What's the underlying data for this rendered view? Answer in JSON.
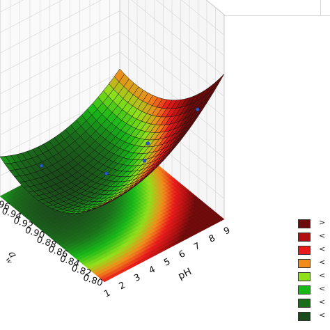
{
  "chart_data": {
    "type": "surface3d",
    "x_axis": {
      "label": "pH",
      "ticks": [
        "1",
        "2",
        "3",
        "4",
        "5",
        "6",
        "7",
        "8",
        "9"
      ],
      "range": [
        1,
        9
      ]
    },
    "y_axis": {
      "label": "a_w",
      "ticks": [
        "0.80",
        "0.82",
        "0.84",
        "0.86",
        "0.88",
        "0.90",
        "0.92",
        "0.94",
        "0.96",
        "0.98"
      ],
      "range": [
        0.8,
        0.98
      ]
    },
    "surface": "quadratic response surface with contour projection on the base plane; minimum near pH 3-4, a_w 0.92-0.94; rising toward pH 9 and a_w 0.80",
    "observed_points_approx": [
      {
        "x": 3,
        "y": 0.96
      },
      {
        "x": 5,
        "y": 0.9
      },
      {
        "x": 6,
        "y": 0.86
      },
      {
        "x": 8,
        "y": 0.82
      },
      {
        "x": 7,
        "y": 0.88
      }
    ],
    "color_scale": [
      "#1a4a1a",
      "#1a6e1a",
      "#18b818",
      "#8fe01a",
      "#f08c1a",
      "#e81a1a",
      "#b01010",
      "#6e0a0a"
    ],
    "grid": true
  },
  "legend": {
    "items": [
      {
        "color": "#6e0a0a",
        "text": ">"
      },
      {
        "color": "#b01010",
        "text": "<"
      },
      {
        "color": "#e81a1a",
        "text": "<"
      },
      {
        "color": "#f08c1a",
        "text": "<"
      },
      {
        "color": "#8fe01a",
        "text": "<"
      },
      {
        "color": "#18b818",
        "text": "<"
      },
      {
        "color": "#1a6e1a",
        "text": "<"
      },
      {
        "color": "#1a4a1a",
        "text": "<"
      }
    ]
  }
}
